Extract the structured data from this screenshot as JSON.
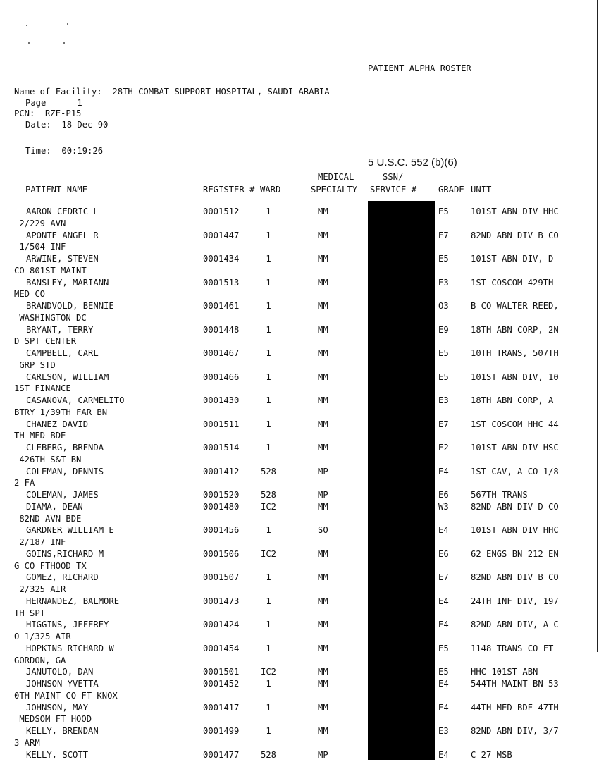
{
  "report": {
    "title": "PATIENT ALPHA ROSTER",
    "facility": "Name of Facility:  28TH COMBAT SUPPORT HOSPITAL, SAUDI ARABIA",
    "page": "Page      1",
    "pcn": "PCN:  RZE-P15",
    "date": "Date:  18 Dec 90",
    "time": "Time:  00:19:26",
    "exemption": "5 U.S.C. 552 (b)(6)"
  },
  "columns": {
    "name": "PATIENT NAME",
    "register": "REGISTER #",
    "ward": "WARD",
    "specialty_top": "MEDICAL",
    "specialty": "SPECIALTY",
    "ssn_top": "SSN/",
    "ssn": "SERVICE #",
    "grade": "GRADE",
    "unit": "UNIT",
    "name_rule": "------------",
    "register_rule": "----------",
    "ward_rule": "----",
    "specialty_rule": "---------",
    "ssn_rule": "---------",
    "grade_rule": "-----",
    "unit_rule": "----"
  },
  "redaction_color": "#000000",
  "patients": [
    {
      "name": "AARON CEDRIC L",
      "register": "0001512",
      "ward": "1",
      "specialty": "MM",
      "grade": "E5",
      "unit": "101ST ABN DIV HHC",
      "cont": " 2/229 AVN"
    },
    {
      "name": "APONTE ANGEL R",
      "register": "0001447",
      "ward": "1",
      "specialty": "MM",
      "grade": "E7",
      "unit": "82ND ABN DIV B CO",
      "cont": " 1/504 INF"
    },
    {
      "name": "ARWINE, STEVEN",
      "register": "0001434",
      "ward": "1",
      "specialty": "MM",
      "grade": "E5",
      "unit": "101ST ABN DIV, D",
      "cont": "CO 801ST MAINT"
    },
    {
      "name": "BANSLEY, MARIANN",
      "register": "0001513",
      "ward": "1",
      "specialty": "MM",
      "grade": "E3",
      "unit": "1ST COSCOM 429TH",
      "cont": "MED CO"
    },
    {
      "name": "BRANDVOLD, BENNIE",
      "register": "0001461",
      "ward": "1",
      "specialty": "MM",
      "grade": "O3",
      "unit": "B CO WALTER REED,",
      "cont": " WASHINGTON DC"
    },
    {
      "name": "BRYANT, TERRY",
      "register": "0001448",
      "ward": "1",
      "specialty": "MM",
      "grade": "E9",
      "unit": "18TH ABN CORP, 2N",
      "cont": "D SPT CENTER"
    },
    {
      "name": "CAMPBELL, CARL",
      "register": "0001467",
      "ward": "1",
      "specialty": "MM",
      "grade": "E5",
      "unit": "10TH TRANS, 507TH",
      "cont": " GRP STD"
    },
    {
      "name": "CARLSON, WILLIAM",
      "register": "0001466",
      "ward": "1",
      "specialty": "MM",
      "grade": "E5",
      "unit": "101ST ABN DIV, 10",
      "cont": "1ST FINANCE"
    },
    {
      "name": "CASANOVA, CARMELITO",
      "register": "0001430",
      "ward": "1",
      "specialty": "MM",
      "grade": "E3",
      "unit": "18TH ABN CORP, A",
      "cont": "BTRY 1/39TH FAR BN"
    },
    {
      "name": "CHANEZ DAVID",
      "register": "0001511",
      "ward": "1",
      "specialty": "MM",
      "grade": "E7",
      "unit": "1ST COSCOM HHC 44",
      "cont": "TH MED BDE"
    },
    {
      "name": "CLEBERG, BRENDA",
      "register": "0001514",
      "ward": "1",
      "specialty": "MM",
      "grade": "E2",
      "unit": "101ST ABN DIV HSC",
      "cont": " 426TH S&T BN"
    },
    {
      "name": "COLEMAN, DENNIS",
      "register": "0001412",
      "ward": "528",
      "specialty": "MP",
      "grade": "E4",
      "unit": "1ST CAV, A CO 1/8",
      "cont": "2 FA"
    },
    {
      "name": "COLEMAN, JAMES",
      "register": "0001520",
      "ward": "528",
      "specialty": "MP",
      "grade": "E6",
      "unit": "567TH TRANS",
      "cont": ""
    },
    {
      "name": "DIAMA, DEAN",
      "register": "0001480",
      "ward": "IC2",
      "specialty": "MM",
      "grade": "W3",
      "unit": "82ND ABN DIV D CO",
      "cont": " 82ND AVN BDE"
    },
    {
      "name": "GARDNER WILLIAM E",
      "register": "0001456",
      "ward": "1",
      "specialty": "SO",
      "grade": "E4",
      "unit": "101ST ABN DIV HHC",
      "cont": " 2/187 INF"
    },
    {
      "name": "GOINS,RICHARD M",
      "register": "0001506",
      "ward": "IC2",
      "specialty": "MM",
      "grade": "E6",
      "unit": "62 ENGS BN 212 EN",
      "cont": "G CO FTHOOD TX"
    },
    {
      "name": "GOMEZ, RICHARD",
      "register": "0001507",
      "ward": "1",
      "specialty": "MM",
      "grade": "E7",
      "unit": "82ND ABN DIV B CO",
      "cont": " 2/325 AIR"
    },
    {
      "name": "HERNANDEZ, BALMORE",
      "register": "0001473",
      "ward": "1",
      "specialty": "MM",
      "grade": "E4",
      "unit": "24TH INF DIV, 197",
      "cont": "TH SPT"
    },
    {
      "name": "HIGGINS, JEFFREY",
      "register": "0001424",
      "ward": "1",
      "specialty": "MM",
      "grade": "E4",
      "unit": "82ND ABN DIV, A C",
      "cont": "O 1/325 AIR"
    },
    {
      "name": "HOPKINS RICHARD W",
      "register": "0001454",
      "ward": "1",
      "specialty": "MM",
      "grade": "E5",
      "unit": "1148 TRANS CO FT",
      "cont": "GORDON, GA"
    },
    {
      "name": "JANUTOLO, DAN",
      "register": "0001501",
      "ward": "IC2",
      "specialty": "MM",
      "grade": "E5",
      "unit": "HHC 101ST ABN",
      "cont": ""
    },
    {
      "name": "JOHNSON YVETTA",
      "register": "0001452",
      "ward": "1",
      "specialty": "MM",
      "grade": "E4",
      "unit": "544TH MAINT BN 53",
      "cont": "0TH MAINT CO FT KNOX"
    },
    {
      "name": "JOHNSON, MAY",
      "register": "0001417",
      "ward": "1",
      "specialty": "MM",
      "grade": "E4",
      "unit": "44TH MED BDE 47TH",
      "cont": " MEDSOM FT HOOD"
    },
    {
      "name": "KELLY, BRENDAN",
      "register": "0001499",
      "ward": "1",
      "specialty": "MM",
      "grade": "E3",
      "unit": "82ND ABN DIV, 3/7",
      "cont": "3 ARM"
    },
    {
      "name": "KELLY, SCOTT",
      "register": "0001477",
      "ward": "528",
      "specialty": "MP",
      "grade": "E4",
      "unit": "C 27 MSB",
      "cont": ""
    }
  ]
}
